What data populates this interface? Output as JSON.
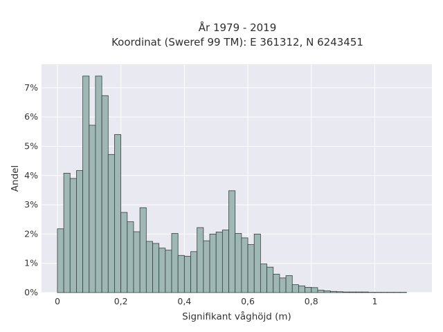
{
  "chart_data": {
    "type": "bar",
    "title": [
      "År 1979 - 2019",
      "Koordinat (Sweref 99 TM): E 361312, N 6243451"
    ],
    "xlabel": "Signifikant våghöjd (m)",
    "ylabel": "Andel",
    "xlim": [
      -0.05,
      1.18
    ],
    "ylim": [
      0,
      7.8
    ],
    "x_ticks": [
      0,
      0.2,
      0.4,
      0.6,
      0.8,
      1
    ],
    "x_tick_labels": [
      "0",
      "0,2",
      "0,4",
      "0,6",
      "0,8",
      "1"
    ],
    "y_ticks": [
      0,
      1,
      2,
      3,
      4,
      5,
      6,
      7
    ],
    "y_tick_labels": [
      "0%",
      "1%",
      "2%",
      "3%",
      "4%",
      "5%",
      "6%",
      "7%"
    ],
    "grid": true,
    "bin_width": 0.02,
    "bin_start": 0.01,
    "values": [
      2.18,
      4.08,
      3.9,
      4.17,
      7.4,
      5.72,
      7.4,
      6.73,
      4.72,
      5.4,
      2.74,
      2.42,
      2.08,
      2.9,
      1.75,
      1.68,
      1.52,
      1.45,
      2.02,
      1.27,
      1.24,
      1.4,
      2.22,
      1.77,
      2.0,
      2.07,
      2.14,
      3.48,
      2.02,
      1.87,
      1.64,
      2.0,
      0.98,
      0.87,
      0.63,
      0.5,
      0.58,
      0.27,
      0.23,
      0.18,
      0.17,
      0.08,
      0.06,
      0.04,
      0.03,
      0.02,
      0.02,
      0.02,
      0.02,
      0.01,
      0.01,
      0.01,
      0.01,
      0.01,
      0.01
    ]
  },
  "colors": {
    "plot_background": "#e9e9f1",
    "grid": "#ffffff",
    "bar_fill": "#9fb7b5",
    "bar_edge": "#33403f"
  }
}
